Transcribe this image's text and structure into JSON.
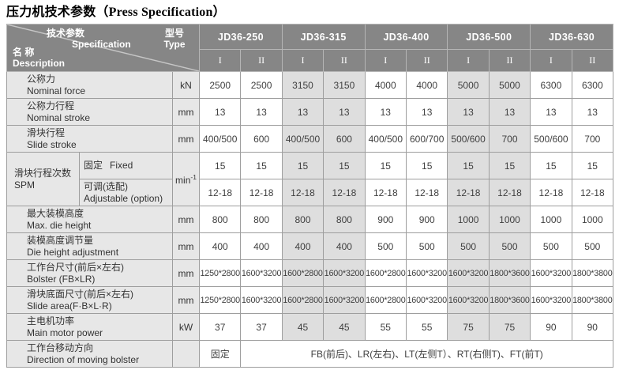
{
  "title": {
    "zh": "压力机技术参数",
    "en": "（Press Specification）"
  },
  "header": {
    "corner": {
      "spec_zh": "技术参数",
      "spec_en": "Specification",
      "type_zh": "型号",
      "type_en": "Type",
      "name_zh": "名 称",
      "name_en": "Description"
    },
    "models": [
      "JD36-250",
      "JD36-315",
      "JD36-400",
      "JD36-500",
      "JD36-630"
    ],
    "variants": [
      "I",
      "II"
    ]
  },
  "shaded_model_indices": [
    1,
    3
  ],
  "rows": [
    {
      "type": "normal",
      "label_zh": "公称力",
      "label_en": "Nominal force",
      "unit": "kN",
      "values": [
        "2500",
        "2500",
        "3150",
        "3150",
        "4000",
        "4000",
        "5000",
        "5000",
        "6300",
        "6300"
      ]
    },
    {
      "type": "normal",
      "label_zh": "公称力行程",
      "label_en": "Nominal stroke",
      "unit": "mm",
      "values": [
        "13",
        "13",
        "13",
        "13",
        "13",
        "13",
        "13",
        "13",
        "13",
        "13"
      ]
    },
    {
      "type": "normal",
      "label_zh": "滑块行程",
      "label_en": "Slide stroke",
      "unit": "mm",
      "values": [
        "400/500",
        "600",
        "400/500",
        "600",
        "400/500",
        "600/700",
        "500/600",
        "700",
        "500/600",
        "700"
      ]
    },
    {
      "type": "spm",
      "label_zh": "滑块行程次数",
      "label_en": "SPM",
      "unit_base": "min",
      "unit_sup": "-1",
      "sub": [
        {
          "label_zh": "固定",
          "label_en": "Fixed",
          "values": [
            "15",
            "15",
            "15",
            "15",
            "15",
            "15",
            "15",
            "15",
            "15",
            "15"
          ]
        },
        {
          "label_zh": "可调(选配)",
          "label_en": "Adjustable (option)",
          "values": [
            "12-18",
            "12-18",
            "12-18",
            "12-18",
            "12-18",
            "12-18",
            "12-18",
            "12-18",
            "12-18",
            "12-18"
          ]
        }
      ]
    },
    {
      "type": "normal",
      "label_zh": "最大装模高度",
      "label_en": "Max. die height",
      "unit": "mm",
      "values": [
        "800",
        "800",
        "800",
        "800",
        "900",
        "900",
        "1000",
        "1000",
        "1000",
        "1000"
      ]
    },
    {
      "type": "normal",
      "label_zh": "装模高度调节量",
      "label_en": "Die height adjustment",
      "unit": "mm",
      "values": [
        "400",
        "400",
        "400",
        "400",
        "500",
        "500",
        "500",
        "500",
        "500",
        "500"
      ]
    },
    {
      "type": "normal",
      "label_zh": "工作台尺寸(前后×左右)",
      "label_en": "Bolster (FB×LR)",
      "unit": "mm",
      "values": [
        "1250*2800",
        "1600*3200",
        "1600*2800",
        "1600*3200",
        "1600*2800",
        "1600*3200",
        "1600*3200",
        "1800*3600",
        "1600*3200",
        "1800*3800"
      ]
    },
    {
      "type": "normal",
      "label_zh": "滑块底面尺寸(前后×左右)",
      "label_en": "Slide area(F·B×L·R)",
      "unit": "mm",
      "values": [
        "1250*2800",
        "1600*3200",
        "1600*2800",
        "1600*3200",
        "1600*2800",
        "1600*3200",
        "1600*3200",
        "1800*3600",
        "1600*3200",
        "1800*3800"
      ]
    },
    {
      "type": "normal",
      "label_zh": "主电机功率",
      "label_en": "Main motor power",
      "unit": "kW",
      "values": [
        "37",
        "37",
        "45",
        "45",
        "55",
        "55",
        "75",
        "75",
        "90",
        "90"
      ]
    },
    {
      "type": "footer",
      "label_zh": "工作台移动方向",
      "label_en": "Direction of moving bolster",
      "unit": "",
      "fixed_value": "固定",
      "directions": "FB(前后)、LR(左右)、LT(左侧T）、RT(右侧T)、FT(前T)"
    }
  ],
  "colors": {
    "header_bg": "#868686",
    "header_border": "#b5b5b5",
    "grid": "#9e9e9e",
    "label_bg": "#e7e7e7",
    "shade_bg": "#dedede",
    "header_text": "#ffffff",
    "body_text": "#3f3f3f"
  }
}
